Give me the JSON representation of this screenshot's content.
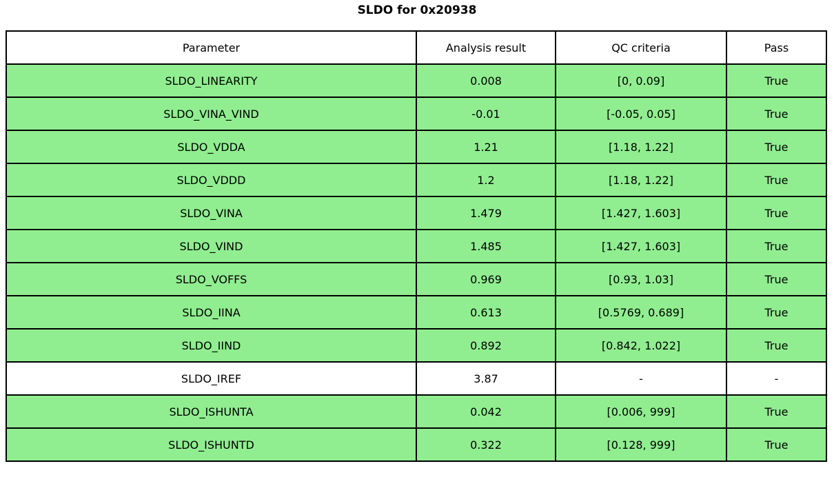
{
  "chart_data": {
    "type": "table",
    "title": "SLDO for 0x20938",
    "columns": [
      "Parameter",
      "Analysis result",
      "QC criteria",
      "Pass"
    ],
    "rows": [
      {
        "cells": [
          "SLDO_LINEARITY",
          "0.008",
          "[0, 0.09]",
          "True"
        ],
        "highlighted": true
      },
      {
        "cells": [
          "SLDO_VINA_VIND",
          "-0.01",
          "[-0.05, 0.05]",
          "True"
        ],
        "highlighted": true
      },
      {
        "cells": [
          "SLDO_VDDA",
          "1.21",
          "[1.18, 1.22]",
          "True"
        ],
        "highlighted": true
      },
      {
        "cells": [
          "SLDO_VDDD",
          "1.2",
          "[1.18, 1.22]",
          "True"
        ],
        "highlighted": true
      },
      {
        "cells": [
          "SLDO_VINA",
          "1.479",
          "[1.427, 1.603]",
          "True"
        ],
        "highlighted": true
      },
      {
        "cells": [
          "SLDO_VIND",
          "1.485",
          "[1.427, 1.603]",
          "True"
        ],
        "highlighted": true
      },
      {
        "cells": [
          "SLDO_VOFFS",
          "0.969",
          "[0.93, 1.03]",
          "True"
        ],
        "highlighted": true
      },
      {
        "cells": [
          "SLDO_IINA",
          "0.613",
          "[0.5769, 0.689]",
          "True"
        ],
        "highlighted": true
      },
      {
        "cells": [
          "SLDO_IIND",
          "0.892",
          "[0.842, 1.022]",
          "True"
        ],
        "highlighted": true
      },
      {
        "cells": [
          "SLDO_IREF",
          "3.87",
          "-",
          "-"
        ],
        "highlighted": false
      },
      {
        "cells": [
          "SLDO_ISHUNTA",
          "0.042",
          "[0.006, 999]",
          "True"
        ],
        "highlighted": true
      },
      {
        "cells": [
          "SLDO_ISHUNTD",
          "0.322",
          "[0.128, 999]",
          "True"
        ],
        "highlighted": true
      }
    ],
    "colors": {
      "highlight_green": "#90ee90",
      "plain_white": "#ffffff",
      "border": "#000000",
      "text": "#000000"
    },
    "layout": {
      "grid": "full-borders",
      "legend": "none",
      "header_background": "#ffffff"
    }
  }
}
